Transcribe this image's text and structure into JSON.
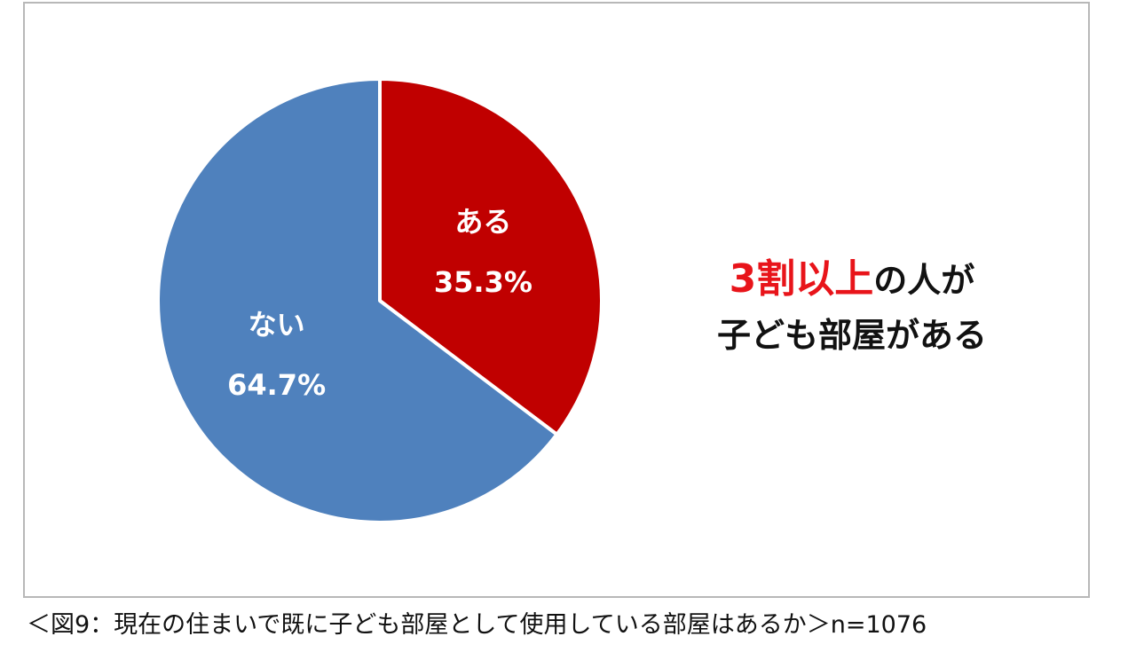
{
  "chart_data": {
    "type": "pie",
    "slices": [
      {
        "label": "ある",
        "value": 35.3,
        "value_label": "35.3%",
        "color": "#c00000"
      },
      {
        "label": "ない",
        "value": 64.7,
        "value_label": "64.7%",
        "color": "#4f81bd"
      }
    ],
    "start_angle": "12 o'clock",
    "direction": "clockwise"
  },
  "headline": {
    "highlight": "3割以上",
    "rest_line1": "の人が",
    "line2": "子ども部屋がある",
    "highlight_color": "#e8141a"
  },
  "caption": "＜図9：現在の住まいで既に子ども部屋として使用している部屋はあるか＞n=1076"
}
